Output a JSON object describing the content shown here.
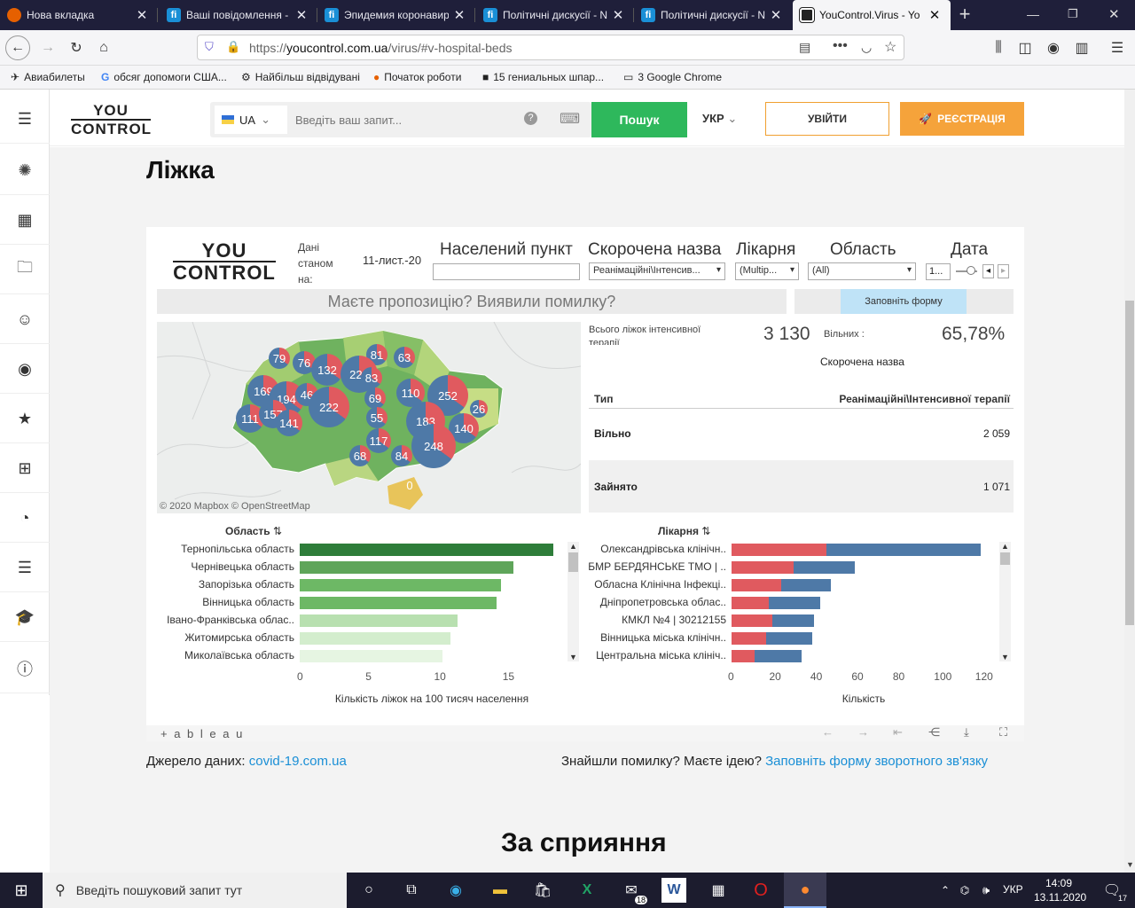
{
  "tabs": [
    {
      "title": "Нова вкладка",
      "icon": "firefox-icon",
      "active": false
    },
    {
      "title": "Ваші повідомлення - ",
      "icon": "forum-icon",
      "active": false
    },
    {
      "title": "Эпидемия коронавир",
      "icon": "forum-icon",
      "active": false
    },
    {
      "title": "Політичні дискусії - N",
      "icon": "forum-icon",
      "active": false
    },
    {
      "title": "Політичні дискусії - N",
      "icon": "forum-icon",
      "active": false
    },
    {
      "title": "YouControl.Virus - Yo",
      "icon": "youcontrol-icon",
      "active": true
    }
  ],
  "url": {
    "prefix": "https://",
    "domain": "youcontrol.com.ua",
    "path": "/virus/#v-hospital-beds"
  },
  "bookmarks": [
    "Авиабилеты",
    "обсяг допомоги США...",
    "Найбільш відвідувані",
    "Початок роботи",
    "15 гениальных шпар...",
    "3 Google Chrome"
  ],
  "header": {
    "logo_top": "YOU",
    "logo_bottom": "CONTROL",
    "country": "UA",
    "search_placeholder": "Введіть ваш запит...",
    "search_button": "Пошук",
    "lang": "УКР",
    "login": "УВІЙТИ",
    "register": "РЕЄСТРАЦІЯ"
  },
  "page": {
    "title": "Ліжка",
    "source_label": "Джерело даних:",
    "source_link": "covid-19.com.ua",
    "feedback_text": "Знайшли помилку? Маєте ідею?",
    "feedback_link": "Заповніть форму зворотного зв'язку",
    "support_title": "За сприяння"
  },
  "viz": {
    "logo_top": "YOU",
    "logo_bottom": "CONTROL",
    "as_of_label": "Дані станом на:",
    "as_of_date": "11-лист.-20",
    "filters": {
      "settlement_label": "Населений пункт",
      "settlement_value": "",
      "short_name_label": "Скорочена назва",
      "short_name_value": "Реанімаційні\\Інтенсив...",
      "hospital_label": "Лікарня",
      "hospital_value": "(Multip...",
      "region_label": "Область",
      "region_value": "(All)",
      "date_label": "Дата",
      "date_value": "1..."
    },
    "proposal_text": "Маєте пропозицію? Виявили помилку?",
    "form_button": "Заповніть форму",
    "map_credit": "© 2020 Mapbox  © OpenStreetMap",
    "total_label": "Всього ліжок інтенсивної терапії",
    "total_value": "3 130",
    "free_label": "Вільних :",
    "free_value": "65,78%",
    "short_name_caption": "Скорочена назва",
    "table_type_header": "Тип",
    "table_col_header": "Реанімаційні\\Інтенсивної терапії",
    "row_free_label": "Вільно",
    "row_free_value": "2 059",
    "row_busy_label": "Зайнято",
    "row_busy_value": "1 071",
    "region_chart_title": "Область",
    "hospital_chart_title": "Лікарня",
    "region_axis_title": "Кількість ліжок на 100 тисяч населення",
    "hospital_axis_title": "Кількість",
    "tableau_label": "+ a b l e a u",
    "map_bubbles": [
      "79",
      "76",
      "132",
      "81",
      "63",
      "228",
      "83",
      "169",
      "194",
      "46",
      "222",
      "69",
      "110",
      "252",
      "26",
      "111",
      "157",
      "141",
      "55",
      "183",
      "140",
      "117",
      "248",
      "84",
      "68",
      "0"
    ]
  },
  "chart_data": [
    {
      "type": "bar",
      "title": "Область",
      "xlabel": "Кількість ліжок на 100 тисяч населення",
      "xlim": [
        0,
        20
      ],
      "ticks": [
        "0",
        "5",
        "10",
        "15"
      ],
      "categories": [
        "Тернопільська область",
        "Чернівецька область",
        "Запорізька область",
        "Вінницька область",
        "Івано-Франківська облас..",
        "Житомирська область",
        "Миколаївська область"
      ],
      "values": [
        18.5,
        15.6,
        14.7,
        14.4,
        11.5,
        11.0,
        10.4
      ],
      "colors": [
        "#2e7d3a",
        "#5fa55a",
        "#6db865",
        "#6db865",
        "#b8e0b0",
        "#d3edcd",
        "#e6f5e2"
      ]
    },
    {
      "type": "bar",
      "stacked": true,
      "title": "Лікарня",
      "xlabel": "Кількість",
      "xlim": [
        0,
        130
      ],
      "ticks": [
        "0",
        "20",
        "40",
        "60",
        "80",
        "100",
        "120"
      ],
      "categories": [
        "Олександрівська клінічн..",
        "БМР БЕРДЯНСЬКЕ ТМО | ..",
        "Обласна Клінічна Інфекці..",
        "Дніпропетровська облас..",
        "КМКЛ №4 | 30212155",
        "Вінницька міська клінічн..",
        "Центральна міська клініч.."
      ],
      "series": [
        {
          "values": [
            46,
            30,
            24,
            18,
            20,
            17,
            11
          ],
          "color": "#e05a5f"
        },
        {
          "values": [
            75,
            30,
            24,
            25,
            20,
            22,
            23
          ],
          "color": "#4e79a7"
        }
      ]
    }
  ],
  "taskbar": {
    "search_placeholder": "Введіть пошуковий запит тут",
    "mail_badge": "18",
    "lang": "УКР",
    "time": "14:09",
    "date": "13.11.2020",
    "notif_count": "17"
  }
}
